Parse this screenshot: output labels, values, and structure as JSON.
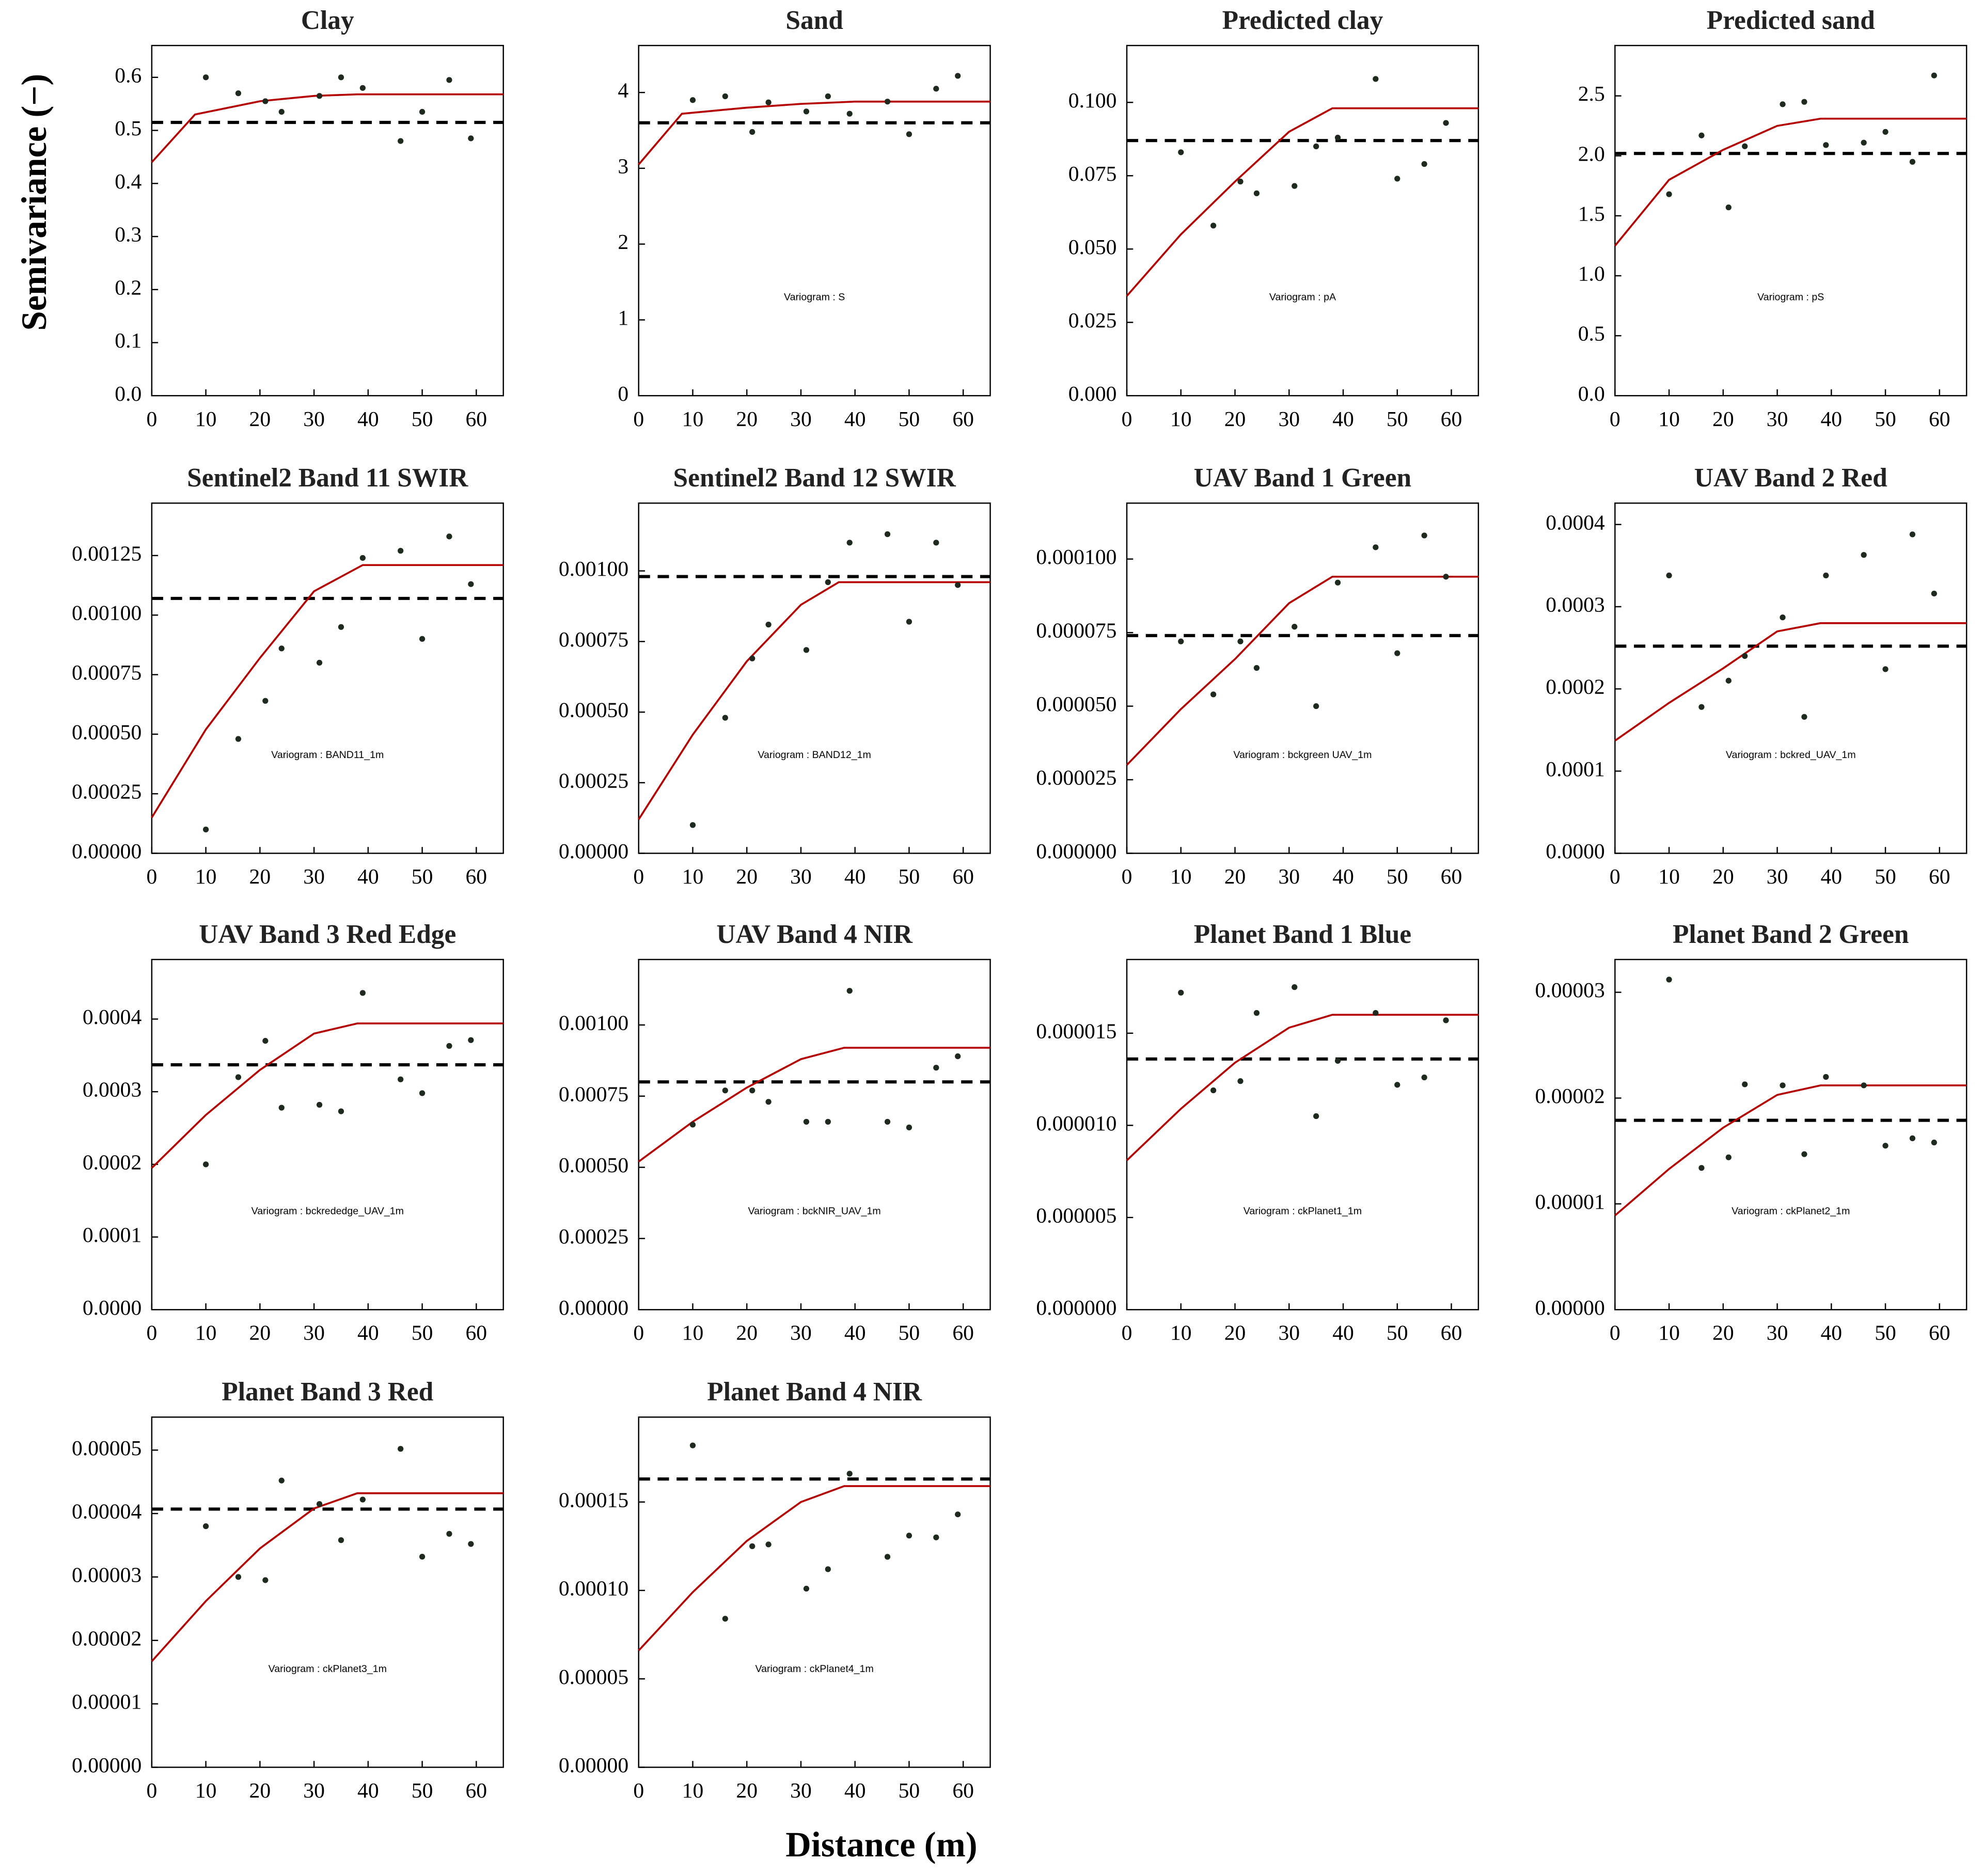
{
  "ylabel": "Semivariance (−)",
  "xlabel": "Distance (m)",
  "chart_data": [
    {
      "type": "scatter",
      "title": "Clay",
      "xlim": [
        0,
        65
      ],
      "xticks": [
        0,
        10,
        20,
        30,
        40,
        50,
        60
      ],
      "ylim": [
        0,
        0.66
      ],
      "yticks": [
        {
          "value": 0,
          "label": "0.0"
        },
        0.1,
        0.2,
        0.3,
        0.4,
        0.5,
        0.6
      ],
      "points": {
        "color": "#1f2a1f",
        "x": [
          10,
          16,
          21,
          24,
          31,
          35,
          39,
          46,
          50,
          55,
          59
        ],
        "values": [
          0.6,
          0.57,
          0.555,
          0.535,
          0.565,
          0.6,
          0.58,
          0.48,
          0.535,
          0.595,
          0.485
        ]
      },
      "model": {
        "color": "#b40000",
        "x": [
          0,
          8,
          20,
          30,
          38,
          65
        ],
        "values": [
          0.44,
          0.53,
          0.555,
          0.565,
          0.568,
          0.568
        ]
      },
      "variance": 0.515,
      "variance_color": "#000000"
    },
    {
      "type": "scatter",
      "title": "Sand",
      "annotation": "Variogram : S",
      "xlim": [
        0,
        65
      ],
      "xticks": [
        0,
        10,
        20,
        30,
        40,
        50,
        60
      ],
      "ylim": [
        0,
        4.62
      ],
      "yticks": [
        0,
        1,
        2,
        3,
        4
      ],
      "points": {
        "color": "#1f2a1f",
        "x": [
          10,
          16,
          21,
          24,
          31,
          35,
          39,
          46,
          50,
          55,
          59
        ],
        "values": [
          3.9,
          3.95,
          3.48,
          3.87,
          3.75,
          3.95,
          3.72,
          3.88,
          3.45,
          4.05,
          4.22
        ]
      },
      "model": {
        "color": "#b40000",
        "x": [
          0,
          8,
          20,
          30,
          40,
          65
        ],
        "values": [
          3.05,
          3.72,
          3.8,
          3.85,
          3.88,
          3.88
        ]
      },
      "variance": 3.6,
      "variance_color": "#000000"
    },
    {
      "type": "scatter",
      "title": "Predicted clay",
      "annotation": "Variogram : pA",
      "xlim": [
        0,
        65
      ],
      "xticks": [
        0,
        10,
        20,
        30,
        40,
        50,
        60
      ],
      "ylim": [
        0,
        0.1194
      ],
      "yticks": [
        {
          "value": 0,
          "label": "0.000"
        },
        0.025,
        {
          "value": 0.05,
          "label": "0.050"
        },
        0.075,
        {
          "value": 0.1,
          "label": "0.100"
        }
      ],
      "points": {
        "color": "#1f2a1f",
        "x": [
          10,
          16,
          21,
          24,
          31,
          35,
          39,
          46,
          50,
          55,
          59
        ],
        "values": [
          0.083,
          0.058,
          0.073,
          0.069,
          0.0715,
          0.085,
          0.088,
          0.108,
          0.074,
          0.079,
          0.093
        ]
      },
      "model": {
        "color": "#b40000",
        "x": [
          0,
          10,
          20,
          30,
          38,
          65
        ],
        "values": [
          0.034,
          0.055,
          0.073,
          0.09,
          0.098,
          0.098
        ]
      },
      "variance": 0.087,
      "variance_color": "#000000"
    },
    {
      "type": "scatter",
      "title": "Predicted sand",
      "annotation": "Variogram : pS",
      "xlim": [
        0,
        65
      ],
      "xticks": [
        0,
        10,
        20,
        30,
        40,
        50,
        60
      ],
      "ylim": [
        0,
        2.92
      ],
      "yticks": [
        {
          "value": 0,
          "label": "0.0"
        },
        0.5,
        {
          "value": 1,
          "label": "1.0"
        },
        1.5,
        {
          "value": 2,
          "label": "2.0"
        },
        2.5
      ],
      "points": {
        "color": "#1f2a1f",
        "x": [
          10,
          16,
          21,
          24,
          31,
          35,
          39,
          46,
          50,
          55,
          59
        ],
        "values": [
          1.68,
          2.17,
          1.57,
          2.08,
          2.43,
          2.45,
          2.09,
          2.11,
          2.2,
          1.95,
          2.67
        ]
      },
      "model": {
        "color": "#b40000",
        "x": [
          0,
          10,
          20,
          30,
          38,
          65
        ],
        "values": [
          1.25,
          1.8,
          2.05,
          2.25,
          2.31,
          2.31
        ]
      },
      "variance": 2.02,
      "variance_color": "#000000"
    },
    {
      "type": "scatter",
      "title": "Sentinel2 Band 11 SWIR",
      "annotation": "Variogram : BAND11_1m",
      "xlim": [
        0,
        65
      ],
      "xticks": [
        0,
        10,
        20,
        30,
        40,
        50,
        60
      ],
      "ylim": [
        0,
        0.00147
      ],
      "yticks": [
        {
          "value": 0,
          "label": "0.00000"
        },
        0.00025,
        {
          "value": 0.0005,
          "label": "0.00050"
        },
        0.00075,
        {
          "value": 0.001,
          "label": "0.00100"
        },
        0.00125
      ],
      "points": {
        "color": "#1f2a1f",
        "x": [
          10,
          16,
          21,
          24,
          31,
          35,
          39,
          46,
          50,
          55,
          59
        ],
        "values": [
          0.0001,
          0.00048,
          0.00064,
          0.00086,
          0.0008,
          0.00095,
          0.00124,
          0.00127,
          0.0009,
          0.00133,
          0.00113
        ]
      },
      "model": {
        "color": "#b40000",
        "x": [
          0,
          10,
          20,
          30,
          39,
          65
        ],
        "values": [
          0.00015,
          0.00052,
          0.00082,
          0.0011,
          0.00121,
          0.00121
        ]
      },
      "variance": 0.00107,
      "variance_color": "#000000"
    },
    {
      "type": "scatter",
      "title": "Sentinel2 Band 12 SWIR",
      "annotation": "Variogram : BAND12_1m",
      "xlim": [
        0,
        65
      ],
      "xticks": [
        0,
        10,
        20,
        30,
        40,
        50,
        60
      ],
      "ylim": [
        0,
        0.00124
      ],
      "yticks": [
        {
          "value": 0,
          "label": "0.00000"
        },
        0.00025,
        {
          "value": 0.0005,
          "label": "0.00050"
        },
        0.00075,
        {
          "value": 0.001,
          "label": "0.00100"
        }
      ],
      "points": {
        "color": "#1f2a1f",
        "x": [
          10,
          16,
          21,
          24,
          31,
          35,
          39,
          46,
          50,
          55,
          59
        ],
        "values": [
          0.0001,
          0.00048,
          0.00069,
          0.00081,
          0.00072,
          0.00096,
          0.0011,
          0.00113,
          0.00082,
          0.0011,
          0.00095
        ]
      },
      "model": {
        "color": "#b40000",
        "x": [
          0,
          10,
          20,
          30,
          37,
          65
        ],
        "values": [
          0.00012,
          0.00042,
          0.00068,
          0.00088,
          0.00096,
          0.00096
        ]
      },
      "variance": 0.00098,
      "variance_color": "#000000"
    },
    {
      "type": "scatter",
      "title": "UAV Band 1 Green",
      "annotation": "Variogram : bckgreen UAV_1m",
      "xlim": [
        0,
        65
      ],
      "xticks": [
        0,
        10,
        20,
        30,
        40,
        50,
        60
      ],
      "ylim": [
        0,
        0.000119
      ],
      "yticks": [
        {
          "value": 0,
          "label": "0.000000"
        },
        2.5e-05,
        {
          "value": 5e-05,
          "label": "0.000050"
        },
        7.5e-05,
        {
          "value": 0.0001,
          "label": "0.000100"
        }
      ],
      "points": {
        "color": "#1f2a1f",
        "x": [
          10,
          16,
          21,
          24,
          31,
          35,
          39,
          46,
          50,
          55,
          59
        ],
        "values": [
          7.2e-05,
          5.4e-05,
          7.2e-05,
          6.3e-05,
          7.7e-05,
          5e-05,
          9.2e-05,
          0.000104,
          6.8e-05,
          0.000108,
          9.4e-05
        ]
      },
      "model": {
        "color": "#b40000",
        "x": [
          0,
          10,
          20,
          30,
          38,
          65
        ],
        "values": [
          3e-05,
          4.9e-05,
          6.6e-05,
          8.5e-05,
          9.4e-05,
          9.4e-05
        ]
      },
      "variance": 7.4e-05,
      "variance_color": "#000000"
    },
    {
      "type": "scatter",
      "title": "UAV Band 2 Red",
      "annotation": "Variogram : bckred_UAV_1m",
      "xlim": [
        0,
        65
      ],
      "xticks": [
        0,
        10,
        20,
        30,
        40,
        50,
        60
      ],
      "ylim": [
        0,
        0.000426
      ],
      "yticks": [
        {
          "value": 0,
          "label": "0.0000"
        },
        0.0001,
        0.0002,
        0.0003,
        0.0004
      ],
      "points": {
        "color": "#1f2a1f",
        "x": [
          10,
          16,
          21,
          24,
          31,
          35,
          39,
          46,
          50,
          55,
          59
        ],
        "values": [
          0.000338,
          0.000178,
          0.00021,
          0.00024,
          0.000287,
          0.000166,
          0.000338,
          0.000363,
          0.000224,
          0.000388,
          0.000316
        ]
      },
      "model": {
        "color": "#b40000",
        "x": [
          0,
          10,
          20,
          30,
          38,
          65
        ],
        "values": [
          0.000137,
          0.000183,
          0.000225,
          0.00027,
          0.00028,
          0.00028
        ]
      },
      "variance": 0.000252,
      "variance_color": "#000000"
    },
    {
      "type": "scatter",
      "title": "UAV Band 3 Red Edge",
      "annotation": "Variogram : bckrededge_UAV_1m",
      "xlim": [
        0,
        65
      ],
      "xticks": [
        0,
        10,
        20,
        30,
        40,
        50,
        60
      ],
      "ylim": [
        0,
        0.000482
      ],
      "yticks": [
        {
          "value": 0,
          "label": "0.0000"
        },
        0.0001,
        0.0002,
        0.0003,
        0.0004
      ],
      "points": {
        "color": "#1f2a1f",
        "x": [
          10,
          16,
          21,
          24,
          31,
          35,
          39,
          46,
          50,
          55,
          59
        ],
        "values": [
          0.0002,
          0.00032,
          0.00037,
          0.000278,
          0.000282,
          0.000273,
          0.000436,
          0.000317,
          0.000298,
          0.000363,
          0.000371
        ]
      },
      "model": {
        "color": "#b40000",
        "x": [
          0,
          10,
          20,
          30,
          38,
          65
        ],
        "values": [
          0.000195,
          0.000268,
          0.00033,
          0.00038,
          0.000394,
          0.000394
        ]
      },
      "variance": 0.000337,
      "variance_color": "#000000"
    },
    {
      "type": "scatter",
      "title": "UAV Band 4 NIR",
      "annotation": "Variogram : bckNIR_UAV_1m",
      "xlim": [
        0,
        65
      ],
      "xticks": [
        0,
        10,
        20,
        30,
        40,
        50,
        60
      ],
      "ylim": [
        0,
        0.00123
      ],
      "yticks": [
        {
          "value": 0,
          "label": "0.00000"
        },
        0.00025,
        {
          "value": 0.0005,
          "label": "0.00050"
        },
        0.00075,
        {
          "value": 0.001,
          "label": "0.00100"
        }
      ],
      "points": {
        "color": "#1f2a1f",
        "x": [
          10,
          16,
          21,
          24,
          31,
          35,
          39,
          46,
          50,
          55,
          59
        ],
        "values": [
          0.00065,
          0.00077,
          0.00077,
          0.00073,
          0.00066,
          0.00066,
          0.00112,
          0.00066,
          0.00064,
          0.00085,
          0.00089
        ]
      },
      "model": {
        "color": "#b40000",
        "x": [
          0,
          10,
          20,
          30,
          38,
          65
        ],
        "values": [
          0.00052,
          0.00066,
          0.00078,
          0.00088,
          0.00092,
          0.00092
        ]
      },
      "variance": 0.0008,
      "variance_color": "#000000"
    },
    {
      "type": "scatter",
      "title": "Planet Band 1 Blue",
      "annotation": "Variogram : ckPlanet1_1m",
      "xlim": [
        0,
        65
      ],
      "xticks": [
        0,
        10,
        20,
        30,
        40,
        50,
        60
      ],
      "ylim": [
        0,
        1.9e-05
      ],
      "yticks": [
        {
          "value": 0,
          "label": "0.000000"
        },
        5e-06,
        {
          "value": 1e-05,
          "label": "0.000010"
        },
        1.5e-05
      ],
      "points": {
        "color": "#1f2a1f",
        "x": [
          10,
          16,
          21,
          24,
          31,
          35,
          39,
          46,
          50,
          55,
          59
        ],
        "values": [
          1.72e-05,
          1.19e-05,
          1.24e-05,
          1.61e-05,
          1.75e-05,
          1.05e-05,
          1.35e-05,
          1.61e-05,
          1.22e-05,
          1.26e-05,
          1.57e-05
        ]
      },
      "model": {
        "color": "#b40000",
        "x": [
          0,
          10,
          20,
          30,
          38,
          65
        ],
        "values": [
          8.1e-06,
          1.09e-05,
          1.34e-05,
          1.53e-05,
          1.6e-05,
          1.6e-05
        ]
      },
      "variance": 1.36e-05,
      "variance_color": "#000000"
    },
    {
      "type": "scatter",
      "title": "Planet Band 2 Green",
      "annotation": "Variogram : ckPlanet2_1m",
      "xlim": [
        0,
        65
      ],
      "xticks": [
        0,
        10,
        20,
        30,
        40,
        50,
        60
      ],
      "ylim": [
        0,
        3.31e-05
      ],
      "yticks": [
        {
          "value": 0,
          "label": "0.00000"
        },
        1e-05,
        2e-05,
        3e-05
      ],
      "points": {
        "color": "#1f2a1f",
        "x": [
          10,
          16,
          21,
          24,
          31,
          35,
          39,
          46,
          50,
          55,
          59
        ],
        "values": [
          3.12e-05,
          1.34e-05,
          1.44e-05,
          2.13e-05,
          2.12e-05,
          1.47e-05,
          2.2e-05,
          2.12e-05,
          1.55e-05,
          1.62e-05,
          1.58e-05
        ]
      },
      "model": {
        "color": "#b40000",
        "x": [
          0,
          10,
          20,
          30,
          38,
          65
        ],
        "values": [
          8.9e-06,
          1.33e-05,
          1.72e-05,
          2.03e-05,
          2.12e-05,
          2.12e-05
        ]
      },
      "variance": 1.79e-05,
      "variance_color": "#000000"
    },
    {
      "type": "scatter",
      "title": "Planet Band 3 Red",
      "annotation": "Variogram : ckPlanet3_1m",
      "xlim": [
        0,
        65
      ],
      "xticks": [
        0,
        10,
        20,
        30,
        40,
        50,
        60
      ],
      "ylim": [
        0,
        5.52e-05
      ],
      "yticks": [
        {
          "value": 0,
          "label": "0.00000"
        },
        1e-05,
        2e-05,
        3e-05,
        4e-05,
        5e-05
      ],
      "points": {
        "color": "#1f2a1f",
        "x": [
          10,
          16,
          21,
          24,
          31,
          35,
          39,
          46,
          50,
          55,
          59
        ],
        "values": [
          3.8e-05,
          3e-05,
          2.95e-05,
          4.52e-05,
          4.15e-05,
          3.58e-05,
          4.22e-05,
          5.02e-05,
          3.32e-05,
          3.68e-05,
          3.52e-05
        ]
      },
      "model": {
        "color": "#b40000",
        "x": [
          0,
          10,
          20,
          30,
          38,
          65
        ],
        "values": [
          1.67e-05,
          2.62e-05,
          3.45e-05,
          4.08e-05,
          4.32e-05,
          4.32e-05
        ]
      },
      "variance": 4.07e-05,
      "variance_color": "#000000"
    },
    {
      "type": "scatter",
      "title": "Planet Band 4 NIR",
      "annotation": "Variogram : ckPlanet4_1m",
      "xlim": [
        0,
        65
      ],
      "xticks": [
        0,
        10,
        20,
        30,
        40,
        50,
        60
      ],
      "ylim": [
        0,
        0.000198
      ],
      "yticks": [
        {
          "value": 0,
          "label": "0.00000"
        },
        5e-05,
        {
          "value": 0.0001,
          "label": "0.00010"
        },
        0.00015
      ],
      "points": {
        "color": "#1f2a1f",
        "x": [
          10,
          16,
          21,
          24,
          31,
          35,
          39,
          46,
          50,
          55,
          59
        ],
        "values": [
          0.000182,
          8.4e-05,
          0.000125,
          0.000126,
          0.000101,
          0.000112,
          0.000166,
          0.000119,
          0.000131,
          0.00013,
          0.000143
        ]
      },
      "model": {
        "color": "#b40000",
        "x": [
          0,
          10,
          20,
          30,
          38,
          65
        ],
        "values": [
          6.6e-05,
          9.9e-05,
          0.000128,
          0.00015,
          0.000159,
          0.000159
        ]
      },
      "variance": 0.000163,
      "variance_color": "#000000"
    }
  ]
}
